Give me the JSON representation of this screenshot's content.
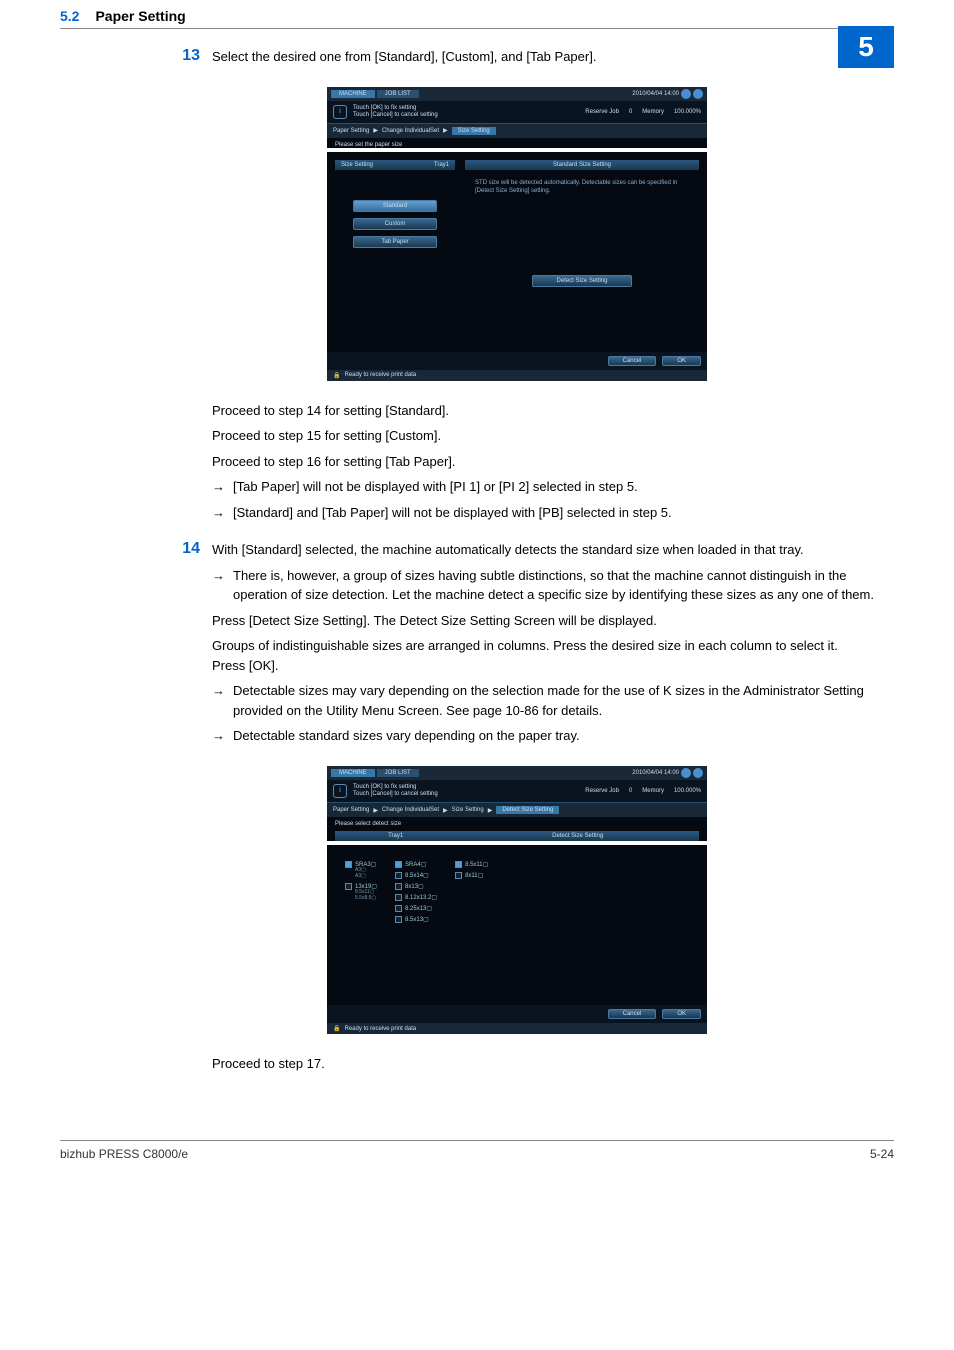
{
  "header": {
    "section_num": "5.2",
    "section_title": "Paper Setting",
    "chapter": "5"
  },
  "step13": {
    "num": "13",
    "text": "Select the desired one from [Standard], [Custom], and [Tab Paper].",
    "after": [
      "Proceed to step 14 for setting [Standard].",
      "Proceed to step 15 for setting [Custom].",
      "Proceed to step 16 for setting [Tab Paper]."
    ],
    "arrows": [
      "[Tab Paper] will not be displayed with [PI 1] or [PI 2] selected in step 5.",
      "[Standard] and [Tab Paper] will not be displayed with [PB] selected in step 5."
    ]
  },
  "step14": {
    "num": "14",
    "text": "With [Standard] selected, the machine automatically detects the standard size when loaded in that tray.",
    "arrows1": [
      "There is, however, a group of sizes having subtle distinctions, so that the machine cannot distinguish in the operation of size detection. Let the machine detect a specific size by identifying these sizes as any one of them."
    ],
    "mid": [
      "Press [Detect Size Setting]. The Detect Size Setting Screen will be displayed.",
      "Groups of indistinguishable sizes are arranged in columns. Press the desired size in each column to select it. Press [OK]."
    ],
    "arrows2": [
      "Detectable sizes may vary depending on the selection made for the use of K sizes in the Administrator Setting provided on the Utility Menu Screen. See page 10-86 for details.",
      "Detectable standard sizes vary depending on the paper tray."
    ],
    "after": "Proceed to step 17."
  },
  "scr_common": {
    "tab1": "MACHINE",
    "tab2": "JOB LIST",
    "datetime": "2010/04/04 14:00",
    "info1": "Touch [OK] to fix setting",
    "info2": "Touch [Cancel] to cancel setting",
    "reserve": "Reserve Job",
    "reserve_n": "0",
    "memory": "Memory",
    "memory_v": "100.000%",
    "bc1": "Paper Setting",
    "bc2": "Change IndividualSet",
    "bc3": "Size Setting",
    "cancel": "Cancel",
    "ok": "OK",
    "status": "Ready to receive print data"
  },
  "scr1": {
    "prompt": "Please set the paper size",
    "left_hdr": "Size Setting",
    "tray": "Tray1",
    "opt1": "Standard",
    "opt2": "Custom",
    "opt3": "Tab Paper",
    "right_hdr": "Standard Size Setting",
    "desc": "STD size will be detected automatically. Detectable sizes can be specified in [Detect Size Setting] setting.",
    "detect": "Detect Size Setting"
  },
  "scr2": {
    "bc4": "Detect Size Setting",
    "prompt": "Please select detect size",
    "tray": "Tray1",
    "hdr": "Detect Size Setting",
    "col1": [
      {
        "label": "SRA3▢",
        "subs": [
          "A3▢",
          "A3▢"
        ],
        "on": true
      },
      {
        "label": "13x19▢",
        "subs": [
          "8.5x11▢",
          "5.5x8.5▢"
        ],
        "on": false
      }
    ],
    "col2": [
      {
        "label": "SRA4▢",
        "on": true
      },
      {
        "label": "8.5x14▢",
        "on": false
      },
      {
        "label": "8x13▢",
        "on": false
      },
      {
        "label": "8.12x13.2▢",
        "on": false
      },
      {
        "label": "8.25x13▢",
        "on": false
      },
      {
        "label": "8.5x13▢",
        "on": false
      }
    ],
    "col3": [
      {
        "label": "8.5x11▢",
        "on": true
      },
      {
        "label": "8x11▢",
        "on": false
      }
    ]
  },
  "footer": {
    "left": "bizhub PRESS C8000/e",
    "right": "5-24"
  },
  "colors": {
    "accent": "#0066cc",
    "screen_bg": "#050a12",
    "screen_panel": "#182838",
    "screen_button": "#3a6890"
  }
}
